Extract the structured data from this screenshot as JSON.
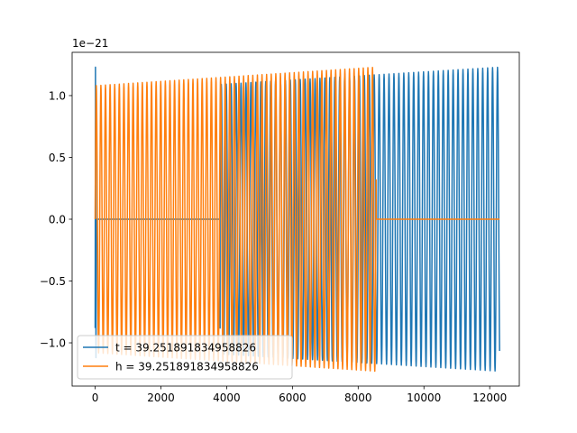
{
  "chart_data": {
    "type": "line",
    "title": "",
    "xlabel": "",
    "ylabel": "",
    "offset_label": "1e−21",
    "xlim": [
      -700,
      12900
    ],
    "ylim": [
      -1.35,
      1.35
    ],
    "xticks": [
      0,
      2000,
      4000,
      6000,
      8000,
      10000,
      12000
    ],
    "xtick_labels": [
      "0",
      "2000",
      "4000",
      "6000",
      "8000",
      "10000",
      "12000"
    ],
    "yticks": [
      -1.0,
      -0.5,
      0.0,
      0.5,
      1.0
    ],
    "ytick_labels": [
      "−1.0",
      "−0.5",
      "0.0",
      "0.5",
      "1.0"
    ],
    "grid": false,
    "legend_position": "lower-left",
    "series": [
      {
        "name": "t = 39.251891834958826",
        "color": "#1f77b4",
        "description_values": {
          "segment_1": {
            "x_range": [
              0,
              40
            ],
            "amplitude": 1.23,
            "note": "initial spike"
          },
          "segment_2": {
            "x_range": [
              40,
              3800
            ],
            "value": 0.0
          },
          "segment_3": {
            "x_range": [
              3800,
              12300
            ],
            "period": 150,
            "amplitude_start": 1.09,
            "amplitude_end": 1.23
          }
        }
      },
      {
        "name": "h = 39.251891834958826",
        "color": "#ff7f0e",
        "description_values": {
          "segment_1": {
            "x_range": [
              0,
              8550
            ],
            "period": 140,
            "amplitude_start": 1.08,
            "amplitude_end": 1.23
          },
          "segment_2": {
            "x_range": [
              8550,
              12300
            ],
            "value": 0.0
          }
        }
      }
    ]
  }
}
